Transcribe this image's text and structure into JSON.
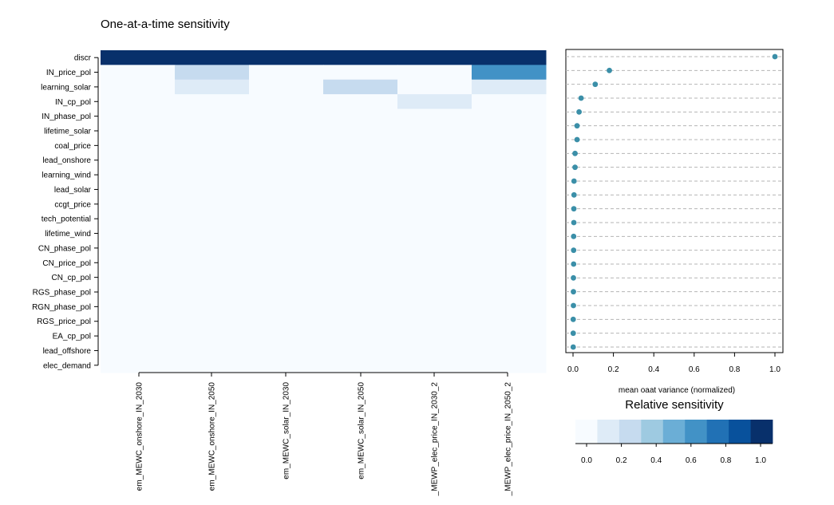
{
  "title": "One-at-a-time sensitivity",
  "chart_data": [
    {
      "type": "heatmap",
      "rows": [
        "discr",
        "IN_price_pol",
        "learning_solar",
        "IN_cp_pol",
        "IN_phase_pol",
        "lifetime_solar",
        "coal_price",
        "lead_onshore",
        "learning_wind",
        "lead_solar",
        "ccgt_price",
        "tech_potential",
        "lifetime_wind",
        "CN_phase_pol",
        "CN_price_pol",
        "CN_cp_pol",
        "RGS_phase_pol",
        "RGN_phase_pol",
        "RGS_price_pol",
        "EA_cp_pol",
        "lead_offshore",
        "elec_demand"
      ],
      "columns": [
        "em_MEWC_onshore_IN_2030",
        "em_MEWC_onshore_IN_2050",
        "em_MEWC_solar_IN_2030",
        "em_MEWC_solar_IN_2050",
        "_MEWP_elec_price_IN_2030_2",
        "_MEWP_elec_price_IN_2050_2"
      ],
      "values": [
        [
          1.0,
          1.0,
          1.0,
          1.0,
          1.0,
          1.0
        ],
        [
          0.0,
          0.2,
          0.0,
          0.0,
          0.0,
          0.6
        ],
        [
          0.0,
          0.1,
          0.0,
          0.2,
          0.0,
          0.1
        ],
        [
          0.0,
          0.0,
          0.0,
          0.0,
          0.1,
          0.0
        ],
        [
          0,
          0,
          0,
          0,
          0,
          0
        ],
        [
          0,
          0,
          0,
          0,
          0,
          0
        ],
        [
          0,
          0,
          0,
          0,
          0,
          0
        ],
        [
          0,
          0,
          0,
          0,
          0,
          0
        ],
        [
          0,
          0,
          0,
          0,
          0,
          0
        ],
        [
          0,
          0,
          0,
          0,
          0,
          0
        ],
        [
          0,
          0,
          0,
          0,
          0,
          0
        ],
        [
          0,
          0,
          0,
          0,
          0,
          0
        ],
        [
          0,
          0,
          0,
          0,
          0,
          0
        ],
        [
          0,
          0,
          0,
          0,
          0,
          0
        ],
        [
          0,
          0,
          0,
          0,
          0,
          0
        ],
        [
          0,
          0,
          0,
          0,
          0,
          0
        ],
        [
          0,
          0,
          0,
          0,
          0,
          0
        ],
        [
          0,
          0,
          0,
          0,
          0,
          0
        ],
        [
          0,
          0,
          0,
          0,
          0,
          0
        ],
        [
          0,
          0,
          0,
          0,
          0,
          0
        ],
        [
          0,
          0,
          0,
          0,
          0,
          0
        ],
        [
          0,
          0,
          0,
          0,
          0,
          0
        ]
      ]
    },
    {
      "type": "scatter",
      "xlabel": "mean oaat variance (normalized)",
      "xlim": [
        0.0,
        1.0
      ],
      "xticks": [
        "0.0",
        "0.2",
        "0.4",
        "0.6",
        "0.8",
        "1.0"
      ],
      "values": [
        1.0,
        0.18,
        0.11,
        0.04,
        0.03,
        0.02,
        0.02,
        0.01,
        0.01,
        0.005,
        0.005,
        0.004,
        0.004,
        0.003,
        0.003,
        0.003,
        0.002,
        0.002,
        0.002,
        0.001,
        0.001,
        0.001
      ],
      "grid": "horizontal dashed",
      "point_color": "#3b8fa8"
    },
    {
      "type": "legend-colorbar",
      "title": "Relative sensitivity",
      "ticks": [
        "0.0",
        "0.2",
        "0.4",
        "0.6",
        "0.8",
        "1.0"
      ],
      "colors": [
        "#f7fbff",
        "#deebf7",
        "#c6dbef",
        "#9ecae1",
        "#6baed6",
        "#4292c6",
        "#2171b5",
        "#08519c",
        "#08306b"
      ]
    }
  ]
}
